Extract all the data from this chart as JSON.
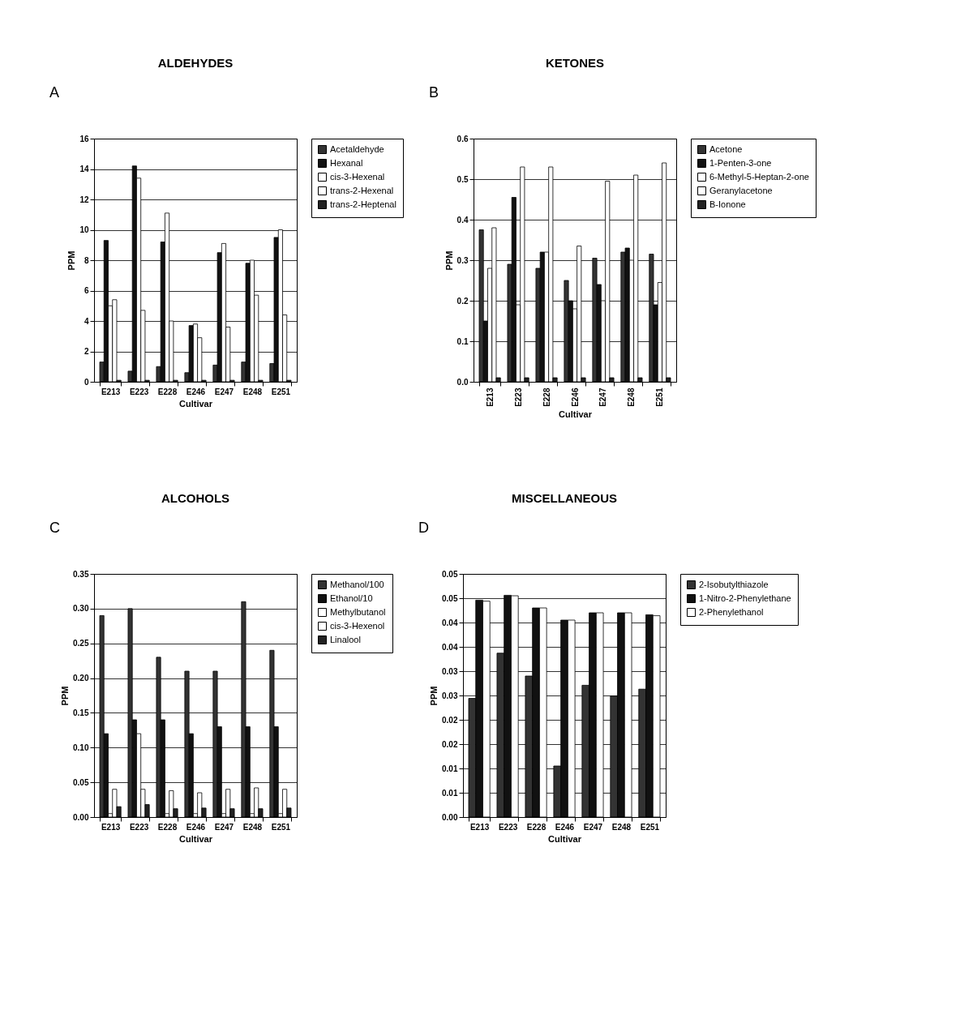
{
  "chart_data": [
    {
      "type": "bar",
      "title": "ALDEHYDES",
      "annotations": [
        "A"
      ],
      "xlabel": "Cultivar",
      "ylabel": "PPM",
      "categories": [
        "E213",
        "E223",
        "E228",
        "E246",
        "E247",
        "E248",
        "E251"
      ],
      "ylim": [
        0,
        16
      ],
      "yticks": [
        0,
        2,
        4,
        6,
        8,
        10,
        12,
        14,
        16
      ],
      "grid": "y",
      "legend": "right",
      "series": [
        {
          "name": "Acetaldehyde",
          "color": "#333333",
          "values": [
            1.3,
            0.7,
            1.0,
            0.6,
            1.1,
            1.3,
            1.2
          ]
        },
        {
          "name": "Hexanal",
          "color": "#111111",
          "values": [
            9.3,
            14.2,
            9.2,
            3.7,
            8.5,
            7.8,
            9.5
          ]
        },
        {
          "name": "cis-3-Hexenal",
          "color": "#ffffff",
          "values": [
            5.0,
            13.4,
            11.1,
            3.8,
            9.1,
            8.0,
            10.0
          ]
        },
        {
          "name": "trans-2-Hexenal",
          "color": "#ffffff",
          "values": [
            5.4,
            4.7,
            4.0,
            2.9,
            3.6,
            5.7,
            4.4
          ]
        },
        {
          "name": "trans-2-Heptenal",
          "color": "#222222",
          "values": [
            0.1,
            0.1,
            0.1,
            0.1,
            0.1,
            0.1,
            0.1
          ]
        }
      ]
    },
    {
      "type": "bar",
      "title": "KETONES",
      "annotations": [
        "B"
      ],
      "xlabel": "Cultivar",
      "ylabel": "PPM",
      "categories": [
        "E213",
        "E223",
        "E228",
        "E246",
        "E247",
        "E248",
        "E251"
      ],
      "ylim": [
        0,
        0.6
      ],
      "yticks": [
        {
          "value": 0,
          "label": "0.0"
        },
        0.1,
        0.2,
        0.3,
        0.4,
        0.5,
        0.6
      ],
      "grid": "y",
      "legend": "right",
      "series": [
        {
          "name": "Acetone",
          "color": "#333333",
          "values": [
            0.375,
            0.29,
            0.28,
            0.25,
            0.305,
            0.32,
            0.315
          ]
        },
        {
          "name": "1-Penten-3-one",
          "color": "#111111",
          "values": [
            0.15,
            0.455,
            0.32,
            0.2,
            0.24,
            0.33,
            0.19
          ]
        },
        {
          "name": "6-Methyl-5-Heptan-2-one",
          "color": "#ffffff",
          "values": [
            0.28,
            0.19,
            0.32,
            0.18,
            0.2,
            0.3,
            0.245
          ]
        },
        {
          "name": "Geranylacetone",
          "color": "#ffffff",
          "values": [
            0.38,
            0.53,
            0.53,
            0.335,
            0.495,
            0.51,
            0.54
          ]
        },
        {
          "name": "B-Ionone",
          "color": "#222222",
          "values": [
            0.01,
            0.01,
            0.01,
            0.01,
            0.01,
            0.01,
            0.01
          ]
        }
      ]
    },
    {
      "type": "bar",
      "title": "ALCOHOLS",
      "annotations": [
        "C"
      ],
      "xlabel": "Cultivar",
      "ylabel": "PPM",
      "categories": [
        "E213",
        "E223",
        "E228",
        "E246",
        "E247",
        "E248",
        "E251"
      ],
      "ylim": [
        0,
        0.35
      ],
      "yticks": [
        {
          "value": 0,
          "label": "0.00"
        },
        {
          "value": 0.05,
          "label": "0.05"
        },
        {
          "value": 0.1,
          "label": "0.10"
        },
        {
          "value": 0.15,
          "label": "0.15"
        },
        {
          "value": 0.2,
          "label": "0.20"
        },
        {
          "value": 0.25,
          "label": "0.25"
        },
        {
          "value": 0.3,
          "label": "0.30"
        },
        {
          "value": 0.35,
          "label": "0.35"
        }
      ],
      "grid": "y",
      "legend": "right",
      "series": [
        {
          "name": "Methanol/100",
          "color": "#333333",
          "values": [
            0.29,
            0.3,
            0.23,
            0.21,
            0.21,
            0.31,
            0.24
          ]
        },
        {
          "name": "Ethanol/10",
          "color": "#111111",
          "values": [
            0.12,
            0.14,
            0.14,
            0.12,
            0.13,
            0.13,
            0.13
          ]
        },
        {
          "name": "Methylbutanol",
          "color": "#ffffff",
          "values": [
            0.005,
            0.12,
            0.005,
            0.005,
            0.005,
            0.005,
            0.005
          ]
        },
        {
          "name": "cis-3-Hexenol",
          "color": "#ffffff",
          "values": [
            0.04,
            0.04,
            0.038,
            0.035,
            0.04,
            0.042,
            0.04
          ]
        },
        {
          "name": "Linalool",
          "color": "#222222",
          "values": [
            0.015,
            0.018,
            0.012,
            0.013,
            0.012,
            0.012,
            0.013
          ]
        }
      ]
    },
    {
      "type": "bar",
      "title": "MISCELLANEOUS",
      "annotations": [
        "D"
      ],
      "xlabel": "Cultivar",
      "ylabel": "PPM",
      "categories": [
        "E213",
        "E223",
        "E228",
        "E246",
        "E247",
        "E248",
        "E251"
      ],
      "ylim": [
        0,
        0.05
      ],
      "yticks": [
        {
          "value": 0,
          "label": "0.00"
        },
        {
          "value": 0.005,
          "label": "0.01"
        },
        {
          "value": 0.01,
          "label": "0.01"
        },
        {
          "value": 0.015,
          "label": "0.02"
        },
        {
          "value": 0.02,
          "label": "0.02"
        },
        {
          "value": 0.025,
          "label": "0.03"
        },
        {
          "value": 0.03,
          "label": "0.03"
        },
        {
          "value": 0.035,
          "label": "0.04"
        },
        {
          "value": 0.04,
          "label": "0.04"
        },
        {
          "value": 0.045,
          "label": "0.05"
        },
        {
          "value": 0.05,
          "label": "0.05"
        }
      ],
      "grid": "y",
      "legend": "right",
      "series": [
        {
          "name": "2-Isobutylthiazole",
          "color": "#333333",
          "values": [
            0.0244,
            0.0337,
            0.029,
            0.0105,
            0.0271,
            0.0249,
            0.0263
          ]
        },
        {
          "name": "1-Nitro-2-Phenylethane",
          "color": "#111111",
          "values": [
            0.0446,
            0.0456,
            0.043,
            0.0405,
            0.042,
            0.042,
            0.0416
          ]
        },
        {
          "name": "2-Phenylethanol",
          "color": "#ffffff",
          "values": [
            0.0444,
            0.0455,
            0.043,
            0.0405,
            0.042,
            0.042,
            0.0414
          ]
        }
      ]
    }
  ]
}
